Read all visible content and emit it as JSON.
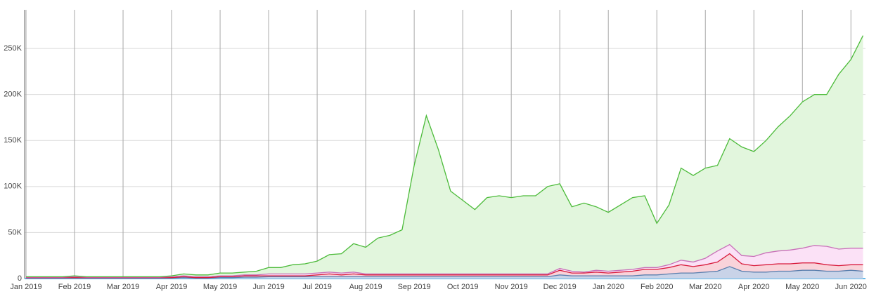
{
  "chart_data": {
    "type": "stacked-area",
    "x": [
      0,
      0.25,
      0.5,
      0.75,
      1,
      1.25,
      1.5,
      1.75,
      2,
      2.25,
      2.5,
      2.75,
      3,
      3.25,
      3.5,
      3.75,
      4,
      4.25,
      4.5,
      4.75,
      5,
      5.25,
      5.5,
      5.75,
      6,
      6.25,
      6.5,
      6.75,
      7,
      7.25,
      7.5,
      7.75,
      8,
      8.25,
      8.5,
      8.75,
      9,
      9.25,
      9.5,
      9.75,
      10,
      10.25,
      10.5,
      10.75,
      11,
      11.25,
      11.5,
      11.75,
      12,
      12.25,
      12.5,
      12.75,
      13,
      13.25,
      13.5,
      13.75,
      14,
      14.25,
      14.5,
      14.75,
      15,
      15.25,
      15.5,
      15.75,
      16,
      16.25,
      16.5,
      16.75,
      17,
      17.25
    ],
    "xlim": [
      0,
      17.3
    ],
    "xticks": [
      {
        "value": 0,
        "label": "Jan 2019"
      },
      {
        "value": 1,
        "label": "Feb 2019"
      },
      {
        "value": 2,
        "label": "Mar 2019"
      },
      {
        "value": 3,
        "label": "Apr 2019"
      },
      {
        "value": 4,
        "label": "May 2019"
      },
      {
        "value": 5,
        "label": "Jun 2019"
      },
      {
        "value": 6,
        "label": "Jul 2019"
      },
      {
        "value": 7,
        "label": "Aug 2019"
      },
      {
        "value": 8,
        "label": "Sep 2019"
      },
      {
        "value": 9,
        "label": "Oct 2019"
      },
      {
        "value": 10,
        "label": "Nov 2019"
      },
      {
        "value": 11,
        "label": "Dec 2019"
      },
      {
        "value": 12,
        "label": "Jan 2020"
      },
      {
        "value": 13,
        "label": "Feb 2020"
      },
      {
        "value": 14,
        "label": "Mar 2020"
      },
      {
        "value": 15,
        "label": "Apr 2020"
      },
      {
        "value": 16,
        "label": "May 2020"
      },
      {
        "value": 17,
        "label": "Jun 2020"
      }
    ],
    "ylim": [
      0,
      292000
    ],
    "yticks": [
      0,
      {
        "value": 50000,
        "label": "50K"
      },
      {
        "value": 100000,
        "label": "100K"
      },
      {
        "value": 150000,
        "label": "150K"
      },
      {
        "value": 200000,
        "label": "200K"
      },
      {
        "value": 250000,
        "label": "250K"
      }
    ],
    "grid": true,
    "series": [
      {
        "color": "#5b7fae",
        "fill": "#c9d3e8",
        "values": [
          500,
          500,
          500,
          500,
          500,
          500,
          500,
          500,
          500,
          500,
          500,
          500,
          500,
          1000,
          500,
          500,
          1000,
          1000,
          1500,
          1500,
          2000,
          2000,
          2000,
          2000,
          2000,
          2000,
          2000,
          2000,
          2000,
          2000,
          2000,
          2000,
          2000,
          2000,
          2000,
          2000,
          2000,
          2000,
          2000,
          2000,
          2000,
          2000,
          2000,
          2000,
          4000,
          3000,
          3000,
          3000,
          3000,
          3000,
          3000,
          4000,
          4000,
          5000,
          6000,
          6000,
          7000,
          8000,
          13000,
          8000,
          7000,
          7000,
          8000,
          8000,
          9000,
          9000,
          8000,
          8000,
          9000,
          8000
        ]
      },
      {
        "color": "#d81b3c",
        "fill": "#f9d3da",
        "values": [
          500,
          500,
          500,
          500,
          500,
          500,
          500,
          500,
          500,
          500,
          500,
          500,
          500,
          1000,
          500,
          500,
          1000,
          1000,
          1500,
          1500,
          1000,
          1000,
          1000,
          1000,
          2000,
          3000,
          2000,
          3000,
          2000,
          2000,
          2000,
          2000,
          2000,
          2000,
          2000,
          2000,
          2000,
          2000,
          2000,
          2000,
          2000,
          2000,
          2000,
          2000,
          5000,
          3000,
          3000,
          4000,
          3000,
          4000,
          5000,
          6000,
          6000,
          7000,
          9000,
          7000,
          8000,
          10000,
          14000,
          8000,
          7000,
          8000,
          8000,
          8000,
          8000,
          8000,
          7000,
          6000,
          6000,
          7000
        ]
      },
      {
        "color": "#c86fb8",
        "fill": "#fbe1f6",
        "values": [
          500,
          500,
          500,
          500,
          1000,
          500,
          500,
          500,
          500,
          500,
          500,
          500,
          1000,
          1000,
          1000,
          1000,
          1000,
          1000,
          1000,
          1000,
          2000,
          2000,
          2000,
          2000,
          2000,
          2000,
          2000,
          2000,
          1000,
          1000,
          1000,
          1000,
          1000,
          1000,
          1000,
          1000,
          1000,
          1000,
          1000,
          1000,
          1000,
          1000,
          1000,
          1000,
          2000,
          2000,
          1000,
          2000,
          2000,
          2000,
          2000,
          2000,
          2000,
          3000,
          5000,
          5000,
          7000,
          12000,
          10000,
          9000,
          10000,
          13000,
          14000,
          15000,
          16000,
          19000,
          20000,
          18000,
          18000,
          18000
        ]
      },
      {
        "color": "#4cbb3a",
        "fill": "#e2f6dd",
        "values": [
          500,
          500,
          500,
          500,
          1000,
          500,
          500,
          500,
          500,
          500,
          500,
          500,
          1000,
          2000,
          2000,
          2000,
          3000,
          3000,
          3000,
          4000,
          7000,
          7000,
          10000,
          11000,
          13000,
          19000,
          21000,
          31000,
          29000,
          39000,
          42000,
          48000,
          118000,
          172000,
          135000,
          90000,
          80000,
          70000,
          83000,
          85000,
          83000,
          85000,
          85000,
          95000,
          92000,
          70000,
          75000,
          69000,
          64000,
          71000,
          78000,
          78000,
          48000,
          65000,
          100000,
          94000,
          98000,
          93000,
          115000,
          118000,
          114000,
          122000,
          135000,
          146000,
          159000,
          164000,
          165000,
          190000,
          205000,
          231000
        ]
      }
    ]
  }
}
